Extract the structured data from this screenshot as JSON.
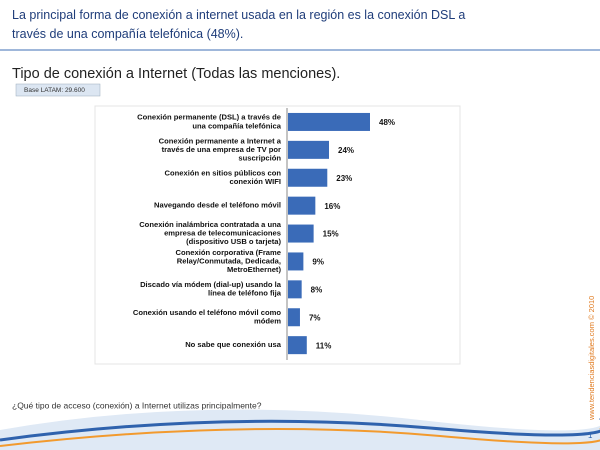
{
  "chart_data": {
    "type": "hbar",
    "title": "La principal forma de conexión a internet usada en la región es la conexión DSL a través de una compañía telefónica (48%).",
    "subtitle": "Tipo de conexión a Internet (Todas las menciones).",
    "note": "Base LATAM: 29.600",
    "categories": [
      "Conexión permanente (DSL) a través de una compañía telefónica",
      "Conexión permanente a Internet a través de una empresa de TV por suscripción",
      "Conexión en sitios públicos con conexión WIFI",
      "Navegando desde el teléfono móvil",
      "Conexión inalámbrica contratada a una empresa de telecomunicaciones (dispositivo USB o tarjeta)",
      "Conexión corporativa (Frame Relay/Conmutada, Dedicada, MetroEthernet)",
      "Discado vía módem (dial-up) usando la línea de teléfono fija",
      "Conexión usando el teléfono móvil como módem",
      "No sabe que conexión usa"
    ],
    "values": [
      48,
      24,
      23,
      16,
      15,
      9,
      8,
      7,
      11
    ],
    "value_labels": [
      "48%",
      "24%",
      "23%",
      "16%",
      "15%",
      "9%",
      "8%",
      "7%",
      "11%"
    ],
    "color": "#3a6bb8",
    "footnote": "¿Qué tipo de acceso (conexión) a Internet utilizas principalmente?",
    "source": "www.tendenciasdigitales.com © 2010",
    "page": "1"
  }
}
